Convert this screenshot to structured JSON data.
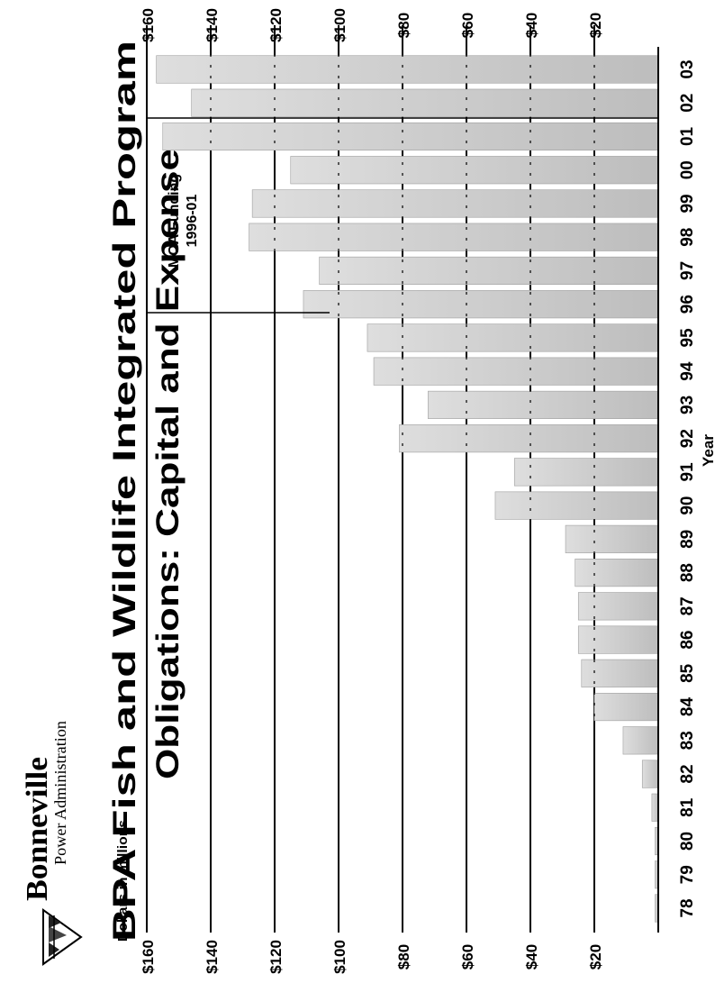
{
  "logo": {
    "name": "Bonneville",
    "subtitle": "Power Administration"
  },
  "units_label": "Dollars in millions",
  "colors": {
    "bar": "#c4c4c4",
    "bar_edge": "#9e9e9e",
    "line": "#000000",
    "background": "#ffffff"
  },
  "chart_data": {
    "type": "bar",
    "title": "BPA Fish and Wildlife Integrated Program",
    "subtitle": "Obligations: Capital and Expense",
    "xlabel": "Year",
    "ylabel": "Dollars in millions",
    "categories": [
      "78",
      "79",
      "80",
      "81",
      "82",
      "83",
      "84",
      "85",
      "86",
      "87",
      "88",
      "89",
      "90",
      "91",
      "92",
      "93",
      "94",
      "95",
      "96",
      "97",
      "98",
      "99",
      "00",
      "01",
      "02",
      "03"
    ],
    "values": [
      1,
      1,
      1,
      2,
      5,
      11,
      20,
      24,
      25,
      25,
      26,
      29,
      51,
      45,
      81,
      72,
      89,
      91,
      111,
      106,
      128,
      127,
      115,
      155,
      146,
      157
    ],
    "ylim": [
      0,
      160
    ],
    "yticks": [
      20,
      40,
      60,
      80,
      100,
      120,
      140,
      160
    ],
    "ytick_labels_left": [
      "$20",
      "$40",
      "$60",
      "$80",
      "$100",
      "$120",
      "$140",
      "$160"
    ],
    "ytick_labels_right": [
      "$20",
      "$40",
      "$60",
      "$80",
      "$100",
      "$120",
      "$140",
      "$160"
    ],
    "grid": true,
    "annotation": {
      "line1": "MOA Funding",
      "line2": "1996-01",
      "start": "96",
      "end": "01"
    }
  }
}
